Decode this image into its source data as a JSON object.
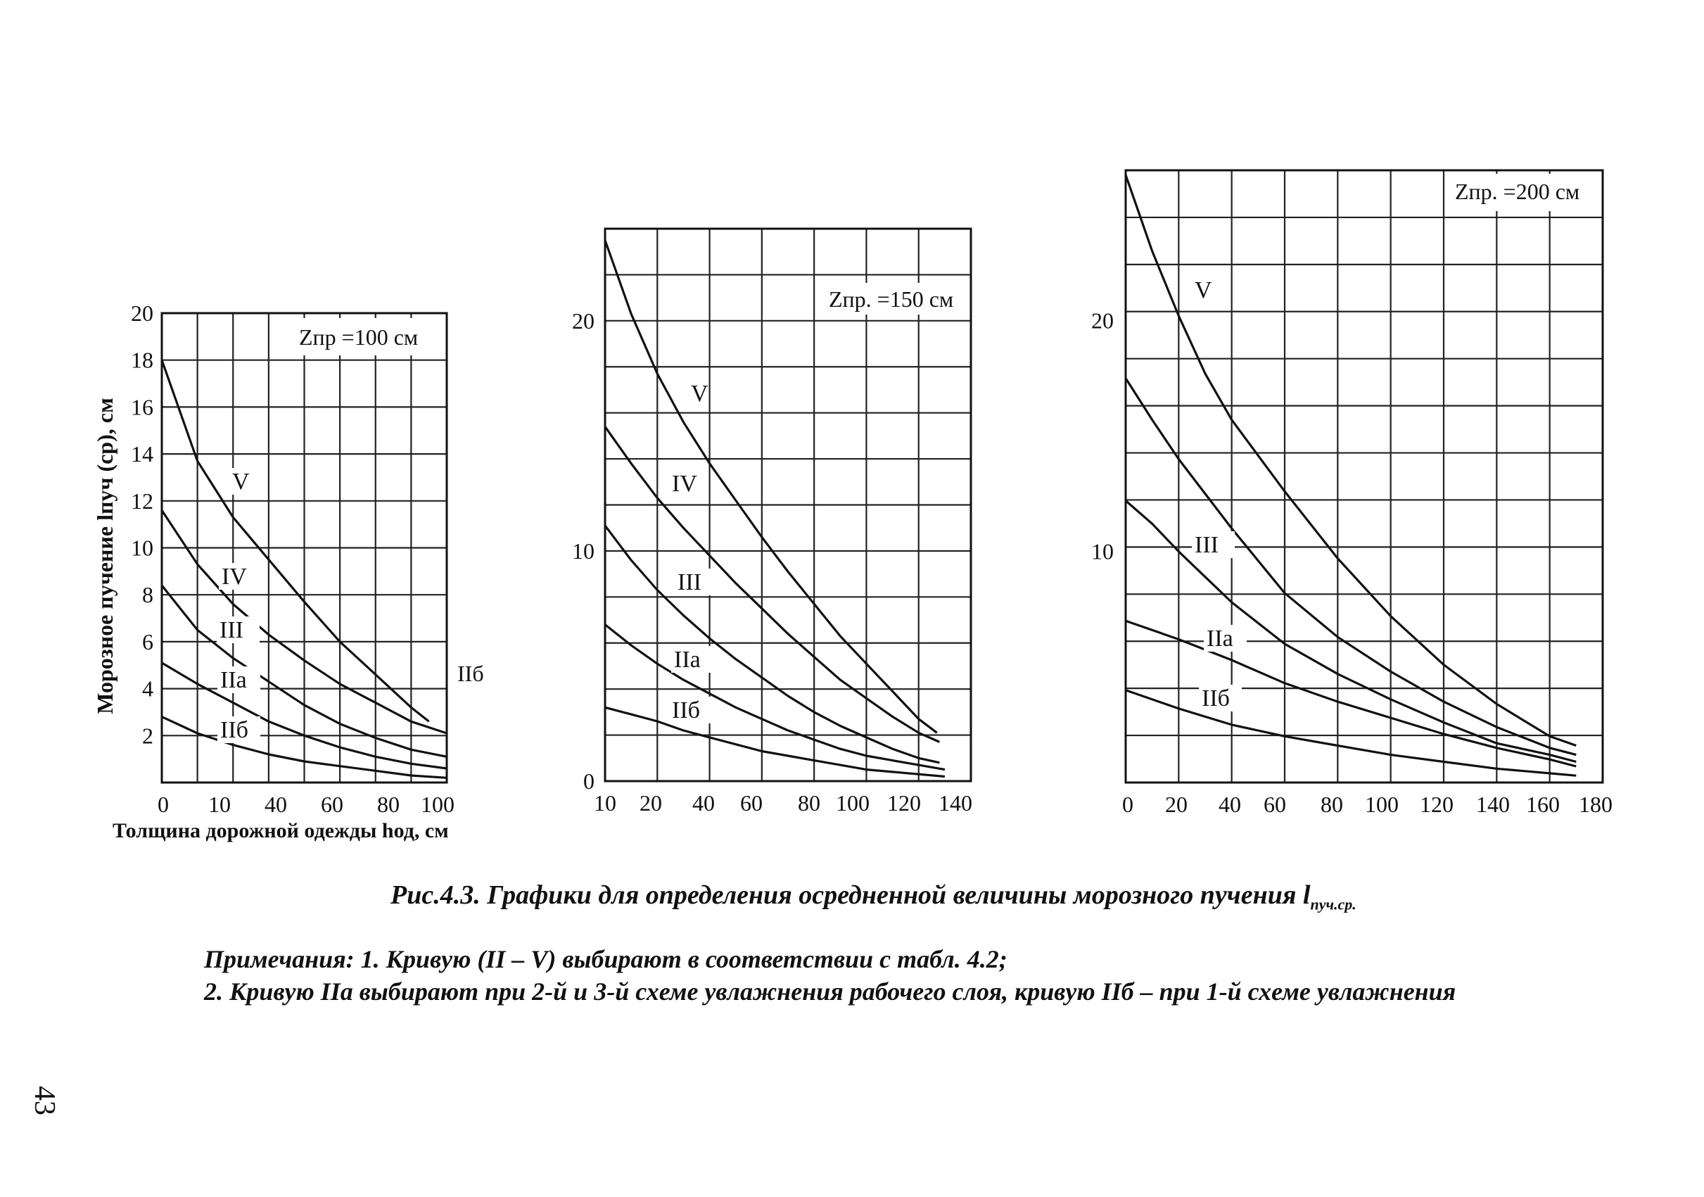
{
  "chart_data": [
    {
      "type": "line",
      "title": "Zпр =100 см",
      "xlabel": "Толщина дорожной одежды hод, см",
      "ylabel": "Морозное пучение lпуч (ср), см",
      "x_tick_labels": [
        "0",
        "10",
        "40",
        "60",
        "80",
        "100"
      ],
      "y_ticks": [
        2,
        4,
        6,
        8,
        10,
        12,
        14,
        16,
        18,
        20
      ],
      "ylim": [
        0,
        20
      ],
      "grid": true,
      "extra_labels": [
        "IIб"
      ],
      "series": [
        {
          "name": "V",
          "points": [
            [
              0,
              18
            ],
            [
              10,
              13.7
            ],
            [
              20,
              11.3
            ],
            [
              30,
              9.5
            ],
            [
              40,
              7.7
            ],
            [
              50,
              6.0
            ],
            [
              60,
              4.6
            ],
            [
              70,
              3.2
            ],
            [
              75,
              2.6
            ]
          ]
        },
        {
          "name": "IV",
          "points": [
            [
              0,
              11.6
            ],
            [
              10,
              9.3
            ],
            [
              20,
              7.6
            ],
            [
              30,
              6.3
            ],
            [
              40,
              5.2
            ],
            [
              50,
              4.2
            ],
            [
              60,
              3.4
            ],
            [
              70,
              2.6
            ],
            [
              80,
              2.1
            ]
          ]
        },
        {
          "name": "III",
          "points": [
            [
              0,
              8.4
            ],
            [
              10,
              6.5
            ],
            [
              20,
              5.3
            ],
            [
              30,
              4.3
            ],
            [
              40,
              3.3
            ],
            [
              50,
              2.5
            ],
            [
              60,
              1.9
            ],
            [
              70,
              1.4
            ],
            [
              80,
              1.1
            ]
          ]
        },
        {
          "name": "IIа",
          "points": [
            [
              0,
              5.1
            ],
            [
              10,
              4.2
            ],
            [
              20,
              3.4
            ],
            [
              30,
              2.6
            ],
            [
              40,
              2.0
            ],
            [
              50,
              1.5
            ],
            [
              60,
              1.1
            ],
            [
              70,
              0.8
            ],
            [
              80,
              0.6
            ]
          ]
        },
        {
          "name": "IIб",
          "points": [
            [
              0,
              2.8
            ],
            [
              10,
              2.1
            ],
            [
              20,
              1.6
            ],
            [
              30,
              1.2
            ],
            [
              40,
              0.9
            ],
            [
              50,
              0.7
            ],
            [
              60,
              0.5
            ],
            [
              70,
              0.3
            ],
            [
              80,
              0.2
            ]
          ]
        }
      ]
    },
    {
      "type": "line",
      "title": "Zпр. =150 см",
      "xlabel": "",
      "ylabel": "",
      "x_tick_labels": [
        "10",
        "20",
        "40",
        "60",
        "80",
        "100",
        "120",
        "140"
      ],
      "y_tick_labels": [
        "0",
        "10",
        "20"
      ],
      "ylim": [
        0,
        24
      ],
      "grid": true,
      "series": [
        {
          "name": "V",
          "points": [
            [
              0,
              23.5
            ],
            [
              10,
              20.3
            ],
            [
              20,
              17.7
            ],
            [
              30,
              15.6
            ],
            [
              40,
              13.8
            ],
            [
              50,
              12.2
            ],
            [
              60,
              10.6
            ],
            [
              70,
              9.1
            ],
            [
              80,
              7.7
            ],
            [
              90,
              6.3
            ],
            [
              100,
              5.1
            ],
            [
              110,
              3.9
            ],
            [
              120,
              2.7
            ],
            [
              127,
              2.1
            ]
          ]
        },
        {
          "name": "IV",
          "points": [
            [
              0,
              15.4
            ],
            [
              10,
              13.8
            ],
            [
              20,
              12.3
            ],
            [
              30,
              11.0
            ],
            [
              40,
              9.8
            ],
            [
              50,
              8.6
            ],
            [
              60,
              7.5
            ],
            [
              70,
              6.4
            ],
            [
              80,
              5.4
            ],
            [
              90,
              4.4
            ],
            [
              100,
              3.6
            ],
            [
              110,
              2.8
            ],
            [
              120,
              2.1
            ],
            [
              128,
              1.7
            ]
          ]
        },
        {
          "name": "III",
          "points": [
            [
              0,
              11.1
            ],
            [
              10,
              9.6
            ],
            [
              20,
              8.3
            ],
            [
              30,
              7.2
            ],
            [
              40,
              6.2
            ],
            [
              50,
              5.3
            ],
            [
              60,
              4.5
            ],
            [
              70,
              3.7
            ],
            [
              80,
              3.0
            ],
            [
              90,
              2.4
            ],
            [
              100,
              1.9
            ],
            [
              110,
              1.4
            ],
            [
              120,
              1.0
            ],
            [
              128,
              0.8
            ]
          ]
        },
        {
          "name": "IIа",
          "points": [
            [
              0,
              6.8
            ],
            [
              10,
              5.9
            ],
            [
              20,
              5.1
            ],
            [
              30,
              4.4
            ],
            [
              40,
              3.8
            ],
            [
              50,
              3.2
            ],
            [
              60,
              2.7
            ],
            [
              70,
              2.2
            ],
            [
              80,
              1.8
            ],
            [
              90,
              1.4
            ],
            [
              100,
              1.1
            ],
            [
              110,
              0.9
            ],
            [
              120,
              0.7
            ],
            [
              130,
              0.5
            ]
          ]
        },
        {
          "name": "IIб",
          "points": [
            [
              0,
              3.2
            ],
            [
              10,
              2.9
            ],
            [
              20,
              2.6
            ],
            [
              30,
              2.2
            ],
            [
              40,
              1.9
            ],
            [
              50,
              1.6
            ],
            [
              60,
              1.3
            ],
            [
              70,
              1.1
            ],
            [
              80,
              0.9
            ],
            [
              90,
              0.7
            ],
            [
              100,
              0.5
            ],
            [
              110,
              0.4
            ],
            [
              120,
              0.3
            ],
            [
              130,
              0.2
            ]
          ]
        }
      ]
    },
    {
      "type": "line",
      "title": "Zпр. =200 см",
      "xlabel": "",
      "ylabel": "",
      "x_tick_labels": [
        "0",
        "20",
        "40",
        "60",
        "80",
        "100",
        "120",
        "140",
        "160",
        "180"
      ],
      "y_tick_labels": [
        "10",
        "20"
      ],
      "ylim": [
        0,
        26.5
      ],
      "grid": true,
      "series": [
        {
          "name": "V",
          "points": [
            [
              0,
              26.3
            ],
            [
              10,
              23.0
            ],
            [
              20,
              20.2
            ],
            [
              30,
              17.7
            ],
            [
              40,
              15.7
            ],
            [
              60,
              12.6
            ],
            [
              80,
              9.7
            ],
            [
              100,
              7.2
            ],
            [
              120,
              5.1
            ],
            [
              140,
              3.4
            ],
            [
              160,
              2.0
            ],
            [
              170,
              1.6
            ]
          ]
        },
        {
          "name": "IV",
          "points": [
            [
              0,
              17.5
            ],
            [
              10,
              15.7
            ],
            [
              20,
              14.0
            ],
            [
              30,
              12.5
            ],
            [
              40,
              11.0
            ],
            [
              60,
              8.2
            ],
            [
              80,
              6.3
            ],
            [
              100,
              4.8
            ],
            [
              120,
              3.5
            ],
            [
              140,
              2.4
            ],
            [
              160,
              1.5
            ],
            [
              170,
              1.2
            ]
          ]
        },
        {
          "name": "III",
          "points": [
            [
              0,
              12.2
            ],
            [
              10,
              11.2
            ],
            [
              20,
              10.0
            ],
            [
              30,
              8.9
            ],
            [
              40,
              7.8
            ],
            [
              60,
              6.0
            ],
            [
              80,
              4.7
            ],
            [
              100,
              3.6
            ],
            [
              120,
              2.6
            ],
            [
              140,
              1.7
            ],
            [
              160,
              1.2
            ],
            [
              170,
              0.9
            ]
          ]
        },
        {
          "name": "IIа",
          "points": [
            [
              0,
              7.0
            ],
            [
              20,
              6.2
            ],
            [
              40,
              5.3
            ],
            [
              60,
              4.3
            ],
            [
              80,
              3.5
            ],
            [
              100,
              2.8
            ],
            [
              120,
              2.1
            ],
            [
              140,
              1.5
            ],
            [
              160,
              1.0
            ],
            [
              170,
              0.7
            ]
          ]
        },
        {
          "name": "IIб",
          "points": [
            [
              0,
              4.0
            ],
            [
              20,
              3.2
            ],
            [
              40,
              2.5
            ],
            [
              60,
              2.0
            ],
            [
              80,
              1.6
            ],
            [
              100,
              1.2
            ],
            [
              120,
              0.9
            ],
            [
              140,
              0.6
            ],
            [
              160,
              0.4
            ],
            [
              170,
              0.3
            ]
          ]
        }
      ]
    }
  ],
  "caption": {
    "text": "Рис.4.3. Графики для определения осредненной величины морозного пучения l",
    "sub": "пуч.ср."
  },
  "notes": {
    "line1": "Примечания: 1. Кривую (II – V) выбирают в соответствии с табл. 4.2;",
    "line2": "2. Кривую IIа выбирают при 2-й и 3-й схеме увлажнения рабочего слоя, кривую IIб – при 1-й схеме увлажнения"
  },
  "page_number": "43"
}
